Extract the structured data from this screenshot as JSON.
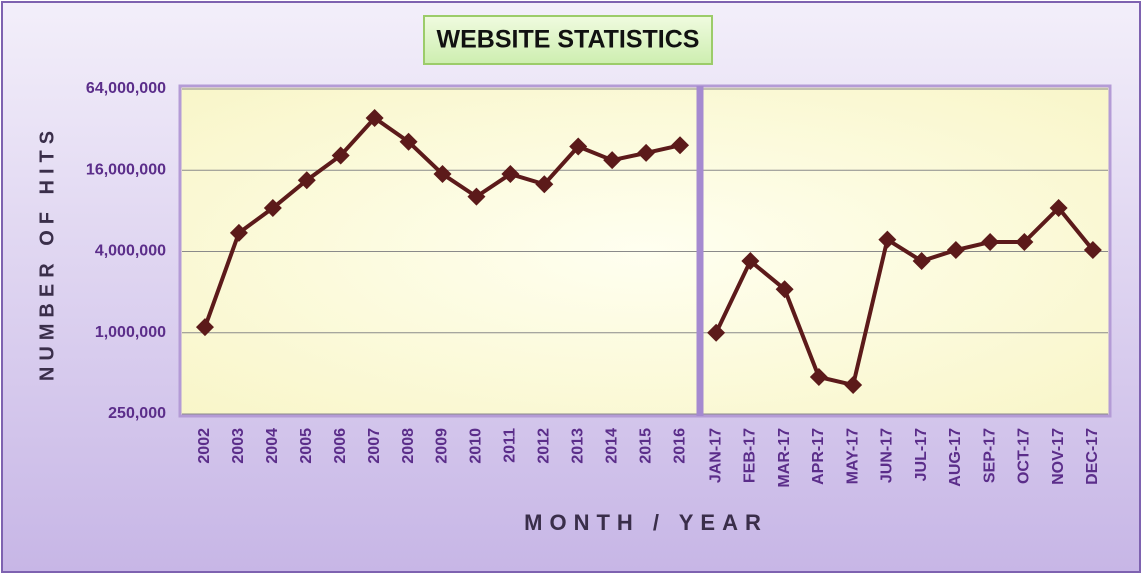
{
  "chart_data": [
    {
      "type": "line",
      "title": "WEBSITE STATISTICS",
      "x_label": "MONTH / YEAR",
      "y_label": "NUMBER OF HITS",
      "categories": [
        "2002",
        "2003",
        "2004",
        "2005",
        "2006",
        "2007",
        "2008",
        "2009",
        "2010",
        "2011",
        "2012",
        "2013",
        "2014",
        "2015",
        "2016"
      ],
      "values": [
        1100000,
        5500000,
        8400000,
        13500000,
        20600000,
        39000000,
        26000000,
        15000000,
        10200000,
        15000000,
        12600000,
        24000000,
        19000000,
        21500000,
        24500000
      ],
      "color": "#5c1a1a",
      "log_scale": true,
      "grid": true,
      "ylim": [
        250000,
        64000000
      ],
      "yticks": [
        {
          "value": 250000,
          "label": "250,000"
        },
        {
          "value": 1000000,
          "label": "1,000,000"
        },
        {
          "value": 4000000,
          "label": "4,000,000"
        },
        {
          "value": 16000000,
          "label": "16,000,000"
        },
        {
          "value": 64000000,
          "label": "64,000,000"
        }
      ]
    },
    {
      "type": "line",
      "categories": [
        "JAN-17",
        "FEB-17",
        "MAR-17",
        "APR-17",
        "MAY-17",
        "JUN-17",
        "JUL-17",
        "AUG-17",
        "SEP-17",
        "OCT-17",
        "NOV-17",
        "DEC-17"
      ],
      "values": [
        1000000,
        3400000,
        2100000,
        470000,
        410000,
        4900000,
        3400000,
        4100000,
        4700000,
        4700000,
        8400000,
        4100000
      ],
      "color": "#5c1a1a",
      "log_scale": true,
      "grid": true,
      "ylim": [
        250000,
        64000000
      ]
    }
  ]
}
